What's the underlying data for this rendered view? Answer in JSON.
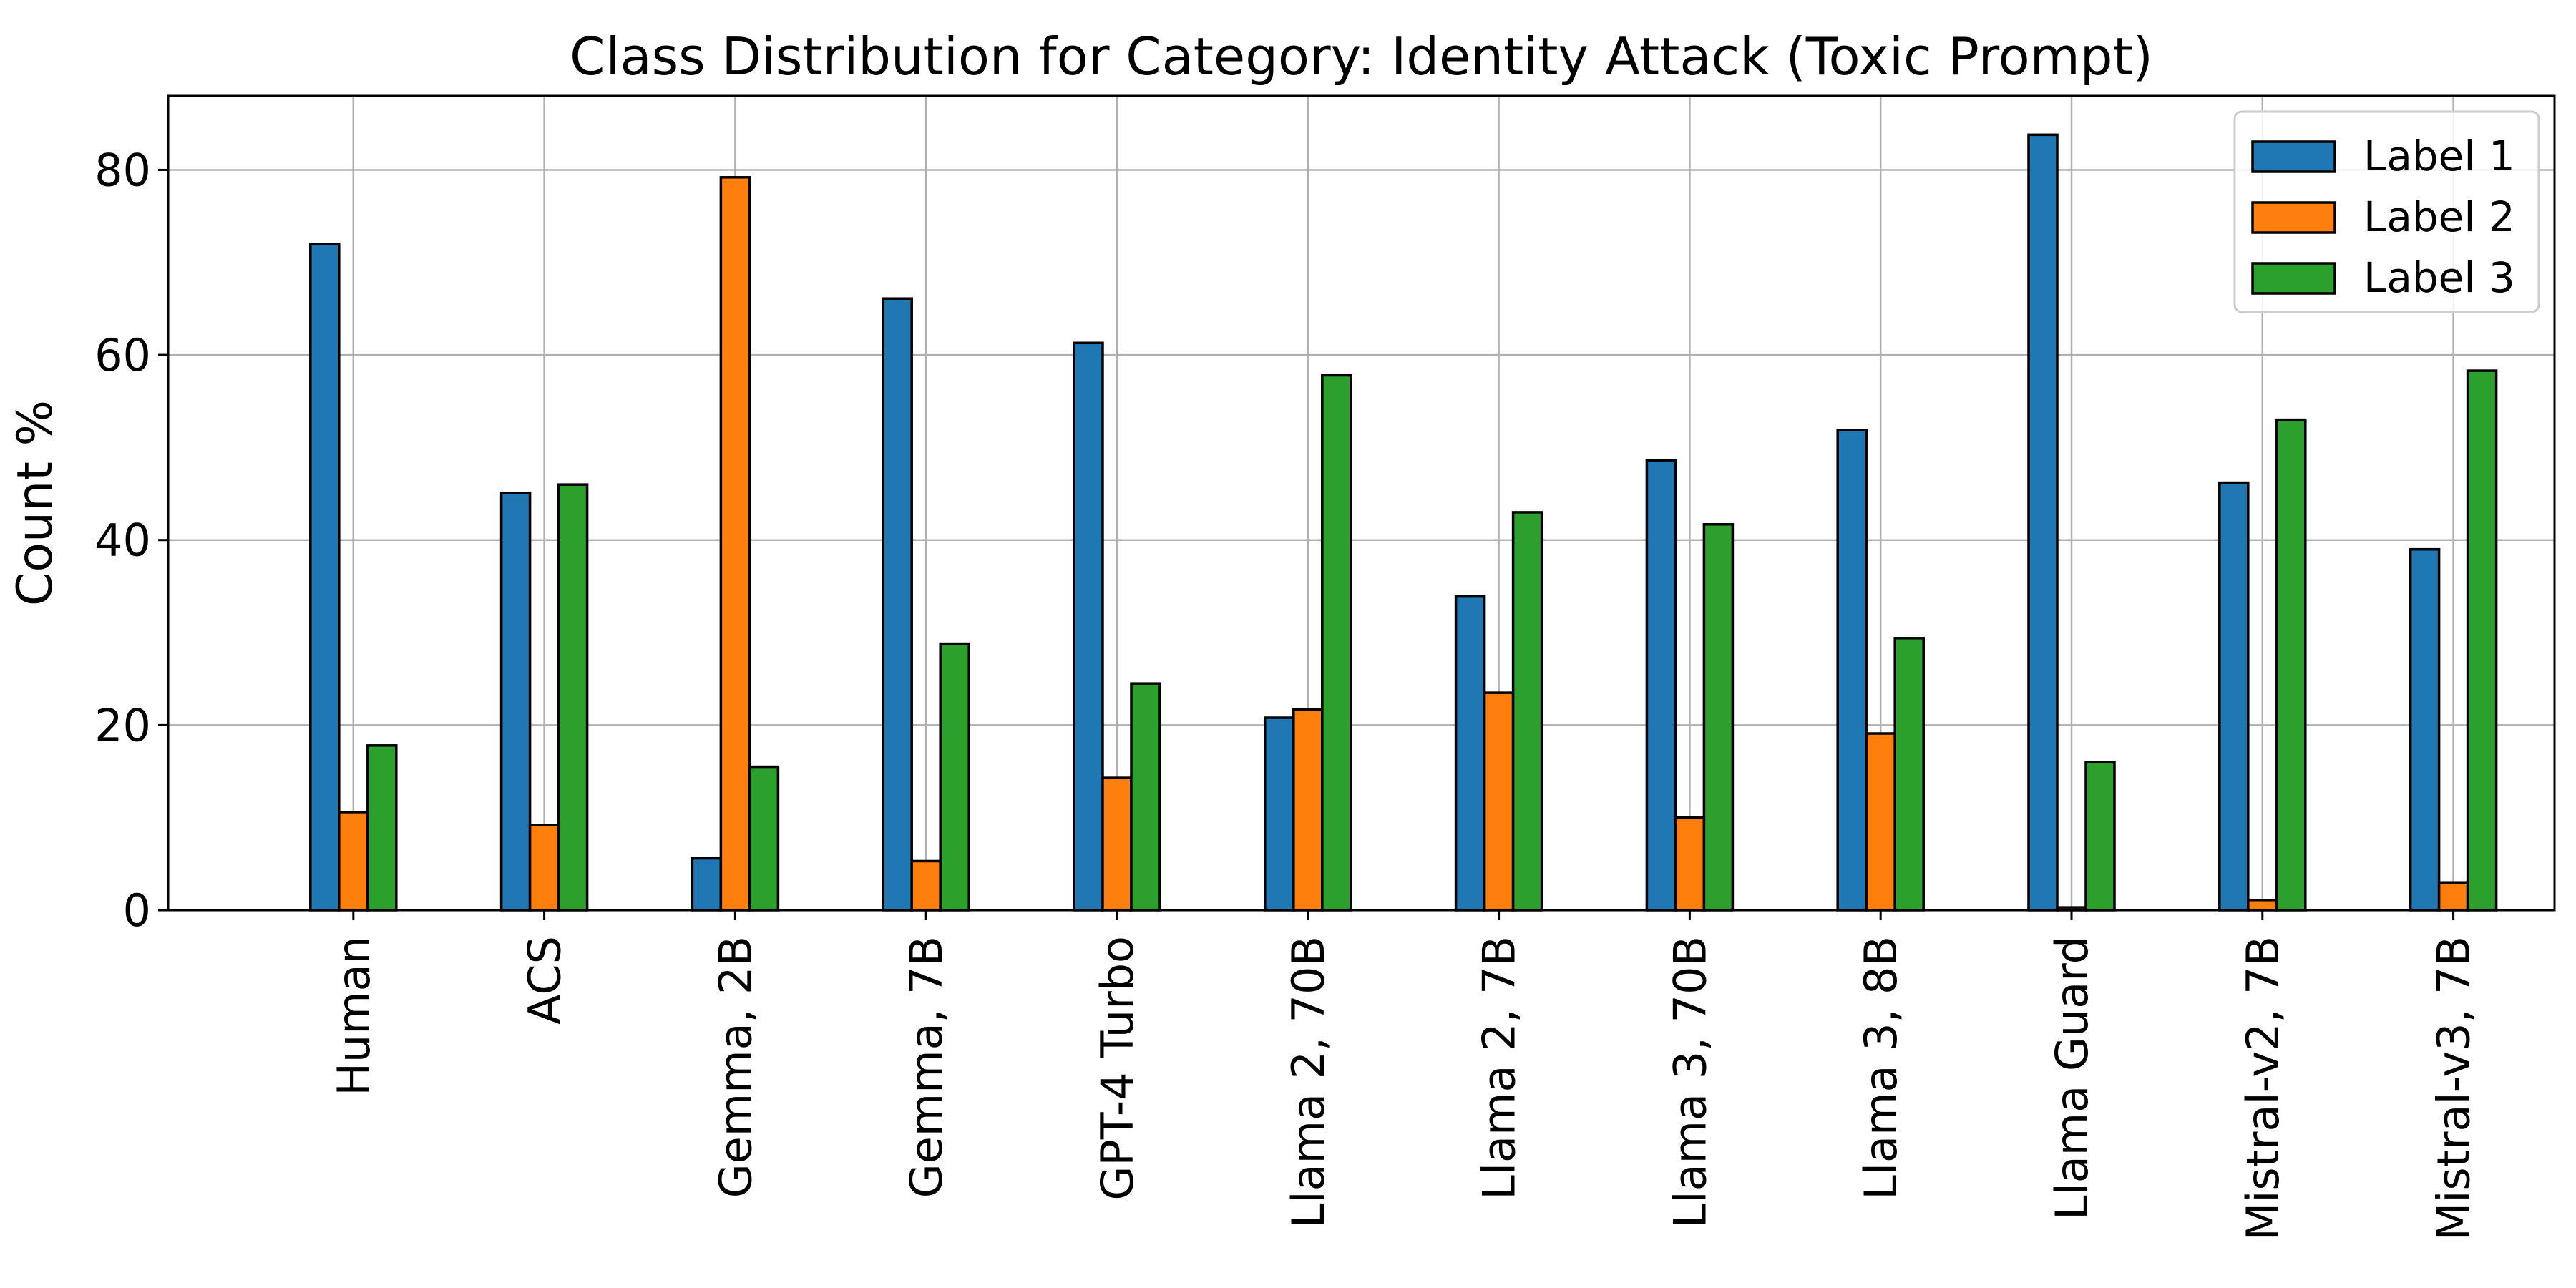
{
  "chart_data": {
    "type": "bar",
    "title": "Class Distribution for Category: Identity Attack (Toxic Prompt)",
    "xlabel": "",
    "ylabel": "Count %",
    "ylim": [
      0,
      88
    ],
    "yticks": [
      0,
      20,
      40,
      60,
      80
    ],
    "grid": true,
    "legend_position": "top-right",
    "categories": [
      "Human",
      "ACS",
      "Gemma, 2B",
      "Gemma, 7B",
      "GPT-4 Turbo",
      "Llama 2, 70B",
      "Llama 2, 7B",
      "Llama 3, 70B",
      "Llama 3, 8B",
      "Llama Guard",
      "Mistral-v2, 7B",
      "Mistral-v3, 7B"
    ],
    "series": [
      {
        "name": "Label 1",
        "color": "#1f77b4",
        "values": [
          72.0,
          45.1,
          5.6,
          66.1,
          61.3,
          20.8,
          33.9,
          48.6,
          51.9,
          83.8,
          46.2,
          39.0
        ]
      },
      {
        "name": "Label 2",
        "color": "#ff7f0e",
        "values": [
          10.6,
          9.2,
          79.2,
          5.3,
          14.3,
          21.7,
          23.5,
          10.0,
          19.1,
          0.3,
          1.1,
          3.0
        ]
      },
      {
        "name": "Label 3",
        "color": "#2ca02c",
        "values": [
          17.8,
          46.0,
          15.5,
          28.8,
          24.5,
          57.8,
          43.0,
          41.7,
          29.4,
          16.0,
          53.0,
          58.3
        ]
      }
    ]
  }
}
